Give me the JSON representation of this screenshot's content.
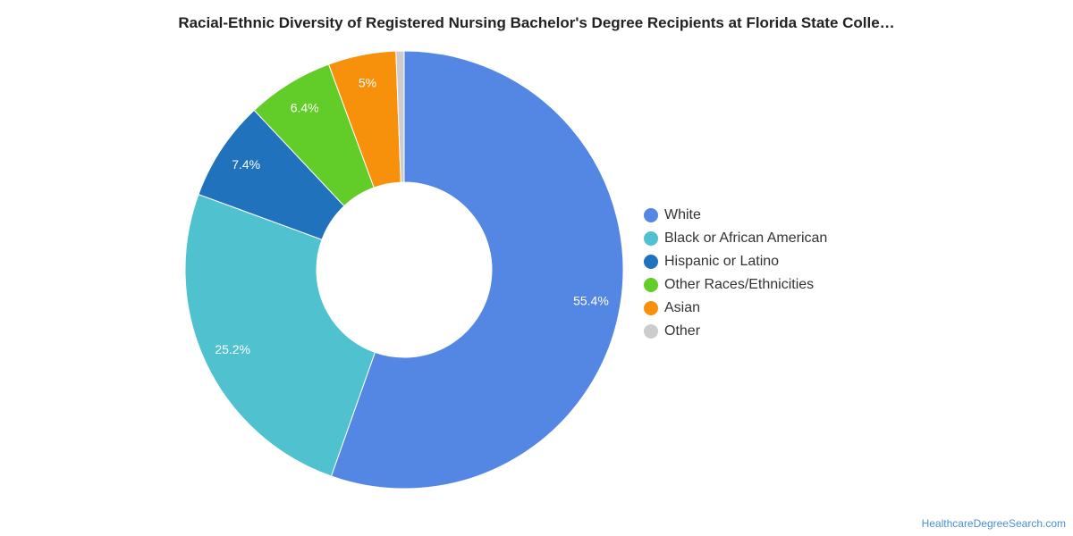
{
  "chart_data": {
    "type": "pie",
    "donut": true,
    "title": "Racial-Ethnic Diversity of Registered Nursing Bachelor's Degree Recipients at Florida State Colle…",
    "legend_position": "right",
    "slices": [
      {
        "label": "White",
        "value": 55.4,
        "display": "55.4%",
        "color": "#5486e3"
      },
      {
        "label": "Black or African American",
        "value": 25.2,
        "display": "25.2%",
        "color": "#50c1ce"
      },
      {
        "label": "Hispanic or Latino",
        "value": 7.4,
        "display": "7.4%",
        "color": "#1f72bb"
      },
      {
        "label": "Other Races/Ethnicities",
        "value": 6.4,
        "display": "6.4%",
        "color": "#62cc28"
      },
      {
        "label": "Asian",
        "value": 5.0,
        "display": "5%",
        "color": "#f7910c"
      },
      {
        "label": "Other",
        "value": 0.6,
        "display": "",
        "color": "#cccccc"
      }
    ]
  },
  "footer": {
    "source": "HealthcareDegreeSearch.com"
  }
}
